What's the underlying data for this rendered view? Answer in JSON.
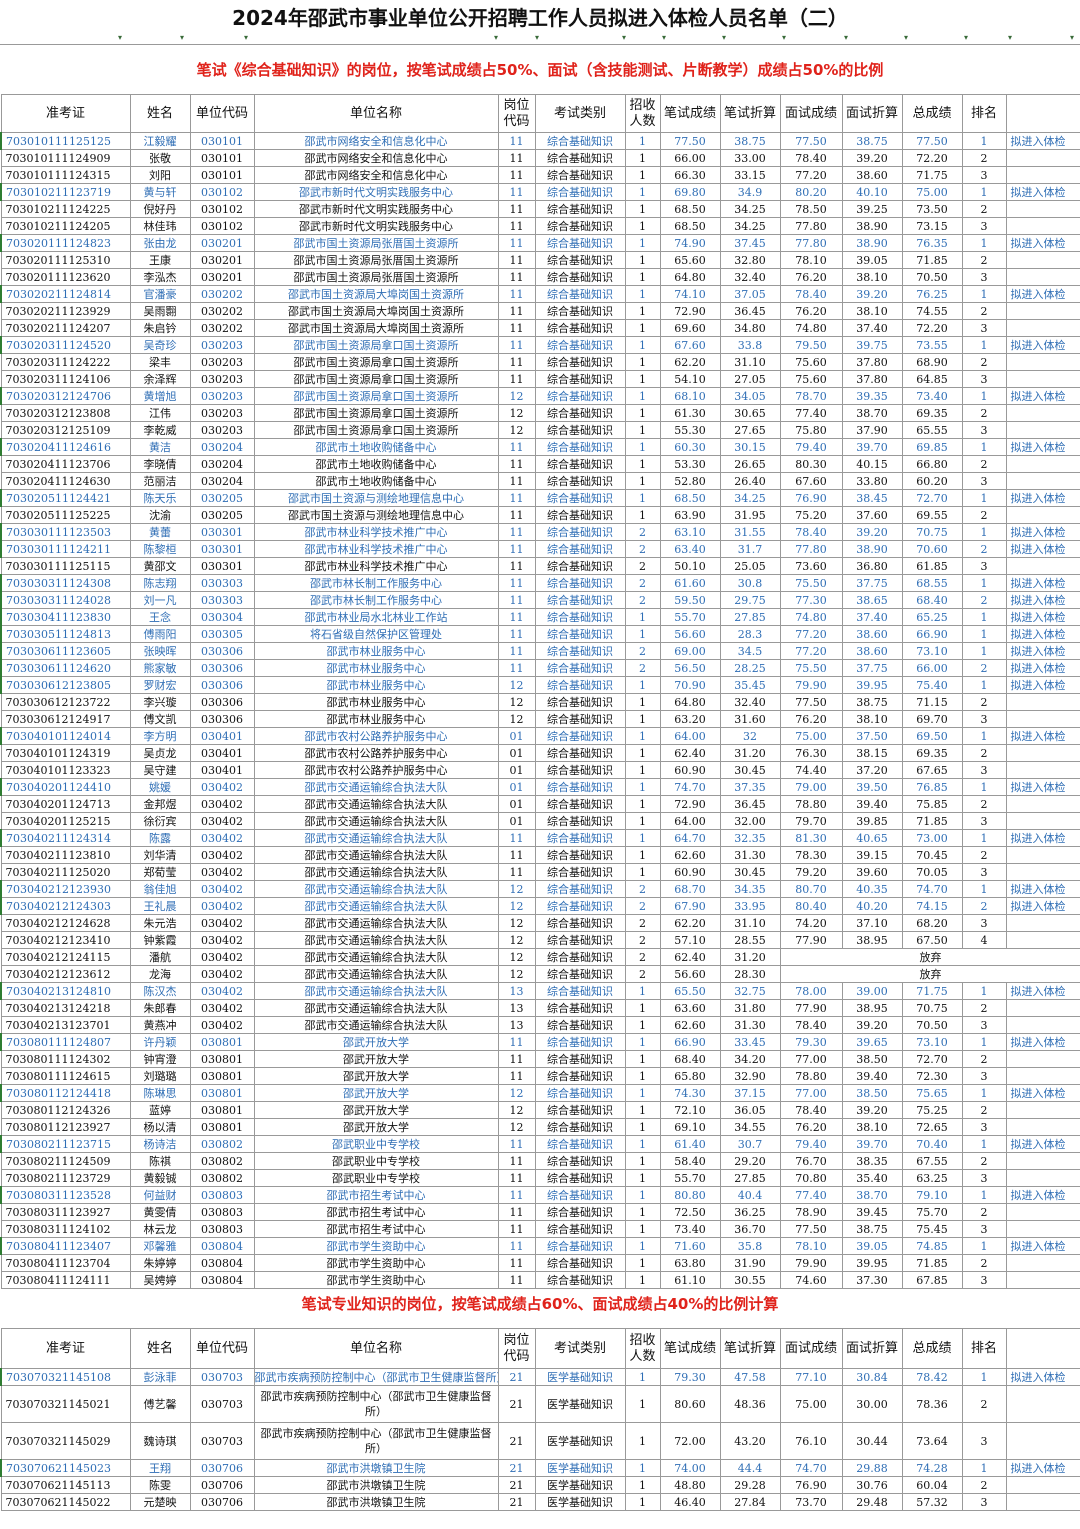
{
  "title": "2024年邵武市事业单位公开招聘工作人员拟进入体检人员名单（二）",
  "banner1": "笔试《综合基础知识》的岗位，按笔试成绩占50%、面试（含技能测试、片断教学）成绩占50%的比例",
  "banner2": "笔试专业知识的岗位，按笔试成绩占60%、面试成绩占40%的比例计算",
  "filter_icon": "▾",
  "headers": [
    "准考证",
    "姓名",
    "单位代码",
    "单位名称",
    "岗位代码",
    "考试类别",
    "招收人数",
    "笔试成绩",
    "笔试折算",
    "面试成绩",
    "面试折算",
    "总成绩",
    "排名"
  ],
  "rows1": [
    [
      "703010111125125",
      "江毅耀",
      "030101",
      "邵武市网络安全和信息化中心",
      "11",
      "综合基础知识",
      "1",
      "77.50",
      "38.75",
      "77.50",
      "38.75",
      "77.50",
      "1",
      "拟进入体检"
    ],
    [
      "703010111124909",
      "张敬",
      "030101",
      "邵武市网络安全和信息化中心",
      "11",
      "综合基础知识",
      "1",
      "66.00",
      "33.00",
      "78.40",
      "39.20",
      "72.20",
      "2",
      ""
    ],
    [
      "703010111124315",
      "刘阳",
      "030101",
      "邵武市网络安全和信息化中心",
      "11",
      "综合基础知识",
      "1",
      "66.30",
      "33.15",
      "77.20",
      "38.60",
      "71.75",
      "3",
      ""
    ],
    [
      "703010211123719",
      "黄与轩",
      "030102",
      "邵武市新时代文明实践服务中心",
      "11",
      "综合基础知识",
      "1",
      "69.80",
      "34.9",
      "80.20",
      "40.10",
      "75.00",
      "1",
      "拟进入体检"
    ],
    [
      "703010211124225",
      "倪好丹",
      "030102",
      "邵武市新时代文明实践服务中心",
      "11",
      "综合基础知识",
      "1",
      "68.50",
      "34.25",
      "78.50",
      "39.25",
      "73.50",
      "2",
      ""
    ],
    [
      "703010211124205",
      "林佳玮",
      "030102",
      "邵武市新时代文明实践服务中心",
      "11",
      "综合基础知识",
      "1",
      "68.50",
      "34.25",
      "77.80",
      "38.90",
      "73.15",
      "3",
      ""
    ],
    [
      "703020111124823",
      "张由龙",
      "030201",
      "邵武市国土资源局张厝国土资源所",
      "11",
      "综合基础知识",
      "1",
      "74.90",
      "37.45",
      "77.80",
      "38.90",
      "76.35",
      "1",
      "拟进入体检"
    ],
    [
      "703020111125310",
      "王康",
      "030201",
      "邵武市国土资源局张厝国土资源所",
      "11",
      "综合基础知识",
      "1",
      "65.60",
      "32.80",
      "78.10",
      "39.05",
      "71.85",
      "2",
      ""
    ],
    [
      "703020111123620",
      "李泓杰",
      "030201",
      "邵武市国土资源局张厝国土资源所",
      "11",
      "综合基础知识",
      "1",
      "64.80",
      "32.40",
      "76.20",
      "38.10",
      "70.50",
      "3",
      ""
    ],
    [
      "703020211124814",
      "官潘豪",
      "030202",
      "邵武市国土资源局大埠岗国土资源所",
      "11",
      "综合基础知识",
      "1",
      "74.10",
      "37.05",
      "78.40",
      "39.20",
      "76.25",
      "1",
      "拟进入体检"
    ],
    [
      "703020211123929",
      "吴雨翾",
      "030202",
      "邵武市国土资源局大埠岗国土资源所",
      "11",
      "综合基础知识",
      "1",
      "72.90",
      "36.45",
      "76.20",
      "38.10",
      "74.55",
      "2",
      ""
    ],
    [
      "703020211124207",
      "朱启钤",
      "030202",
      "邵武市国土资源局大埠岗国土资源所",
      "11",
      "综合基础知识",
      "1",
      "69.60",
      "34.80",
      "74.80",
      "37.40",
      "72.20",
      "3",
      ""
    ],
    [
      "703020311124520",
      "吴奇珍",
      "030203",
      "邵武市国土资源局拿口国土资源所",
      "11",
      "综合基础知识",
      "1",
      "67.60",
      "33.8",
      "79.50",
      "39.75",
      "73.55",
      "1",
      "拟进入体检"
    ],
    [
      "703020311124222",
      "梁丰",
      "030203",
      "邵武市国土资源局拿口国土资源所",
      "11",
      "综合基础知识",
      "1",
      "62.20",
      "31.10",
      "75.60",
      "37.80",
      "68.90",
      "2",
      ""
    ],
    [
      "703020311124106",
      "余泽辉",
      "030203",
      "邵武市国土资源局拿口国土资源所",
      "11",
      "综合基础知识",
      "1",
      "54.10",
      "27.05",
      "75.60",
      "37.80",
      "64.85",
      "3",
      ""
    ],
    [
      "703020312124706",
      "黄增旭",
      "030203",
      "邵武市国土资源局拿口国土资源所",
      "12",
      "综合基础知识",
      "1",
      "68.10",
      "34.05",
      "78.70",
      "39.35",
      "73.40",
      "1",
      "拟进入体检"
    ],
    [
      "703020312123808",
      "江伟",
      "030203",
      "邵武市国土资源局拿口国土资源所",
      "12",
      "综合基础知识",
      "1",
      "61.30",
      "30.65",
      "77.40",
      "38.70",
      "69.35",
      "2",
      ""
    ],
    [
      "703020312125109",
      "李乾威",
      "030203",
      "邵武市国土资源局拿口国土资源所",
      "12",
      "综合基础知识",
      "1",
      "55.30",
      "27.65",
      "75.80",
      "37.90",
      "65.55",
      "3",
      ""
    ],
    [
      "703020411124616",
      "黄洁",
      "030204",
      "邵武市土地收购储备中心",
      "11",
      "综合基础知识",
      "1",
      "60.30",
      "30.15",
      "79.40",
      "39.70",
      "69.85",
      "1",
      "拟进入体检"
    ],
    [
      "703020411123706",
      "李晓倩",
      "030204",
      "邵武市土地收购储备中心",
      "11",
      "综合基础知识",
      "1",
      "53.30",
      "26.65",
      "80.30",
      "40.15",
      "66.80",
      "2",
      ""
    ],
    [
      "703020411124630",
      "范丽洁",
      "030204",
      "邵武市土地收购储备中心",
      "11",
      "综合基础知识",
      "1",
      "52.80",
      "26.40",
      "67.60",
      "33.80",
      "60.20",
      "3",
      ""
    ],
    [
      "703020511124421",
      "陈天乐",
      "030205",
      "邵武市国土资源与测绘地理信息中心",
      "11",
      "综合基础知识",
      "1",
      "68.50",
      "34.25",
      "76.90",
      "38.45",
      "72.70",
      "1",
      "拟进入体检"
    ],
    [
      "703020511125225",
      "沈渝",
      "030205",
      "邵武市国土资源与测绘地理信息中心",
      "11",
      "综合基础知识",
      "1",
      "63.90",
      "31.95",
      "75.20",
      "37.60",
      "69.55",
      "2",
      ""
    ],
    [
      "703030111123503",
      "黄蕾",
      "030301",
      "邵武市林业科学技术推广中心",
      "11",
      "综合基础知识",
      "2",
      "63.10",
      "31.55",
      "78.40",
      "39.20",
      "70.75",
      "1",
      "拟进入体检"
    ],
    [
      "703030111124211",
      "陈黎桓",
      "030301",
      "邵武市林业科学技术推广中心",
      "11",
      "综合基础知识",
      "2",
      "63.40",
      "31.7",
      "77.80",
      "38.90",
      "70.60",
      "2",
      "拟进入体检"
    ],
    [
      "703030111125115",
      "黄邵文",
      "030301",
      "邵武市林业科学技术推广中心",
      "11",
      "综合基础知识",
      "2",
      "50.10",
      "25.05",
      "73.60",
      "36.80",
      "61.85",
      "3",
      ""
    ],
    [
      "703030311124308",
      "陈志翔",
      "030303",
      "邵武市林长制工作服务中心",
      "11",
      "综合基础知识",
      "2",
      "61.60",
      "30.8",
      "75.50",
      "37.75",
      "68.55",
      "1",
      "拟进入体检"
    ],
    [
      "703030311124028",
      "刘一凡",
      "030303",
      "邵武市林长制工作服务中心",
      "11",
      "综合基础知识",
      "2",
      "59.50",
      "29.75",
      "77.30",
      "38.65",
      "68.40",
      "2",
      "拟进入体检"
    ],
    [
      "703030411123830",
      "王念",
      "030304",
      "邵武市林业局水北林业工作站",
      "11",
      "综合基础知识",
      "1",
      "55.70",
      "27.85",
      "74.80",
      "37.40",
      "65.25",
      "1",
      "拟进入体检"
    ],
    [
      "703030511124813",
      "傅雨阳",
      "030305",
      "将石省级自然保护区管理处",
      "11",
      "综合基础知识",
      "1",
      "56.60",
      "28.3",
      "77.20",
      "38.60",
      "66.90",
      "1",
      "拟进入体检"
    ],
    [
      "703030611123605",
      "张映晖",
      "030306",
      "邵武市林业服务中心",
      "11",
      "综合基础知识",
      "2",
      "69.00",
      "34.5",
      "77.20",
      "38.60",
      "73.10",
      "1",
      "拟进入体检"
    ],
    [
      "703030611124620",
      "熊家敏",
      "030306",
      "邵武市林业服务中心",
      "11",
      "综合基础知识",
      "2",
      "56.50",
      "28.25",
      "75.50",
      "37.75",
      "66.00",
      "2",
      "拟进入体检"
    ],
    [
      "703030612123805",
      "罗财宏",
      "030306",
      "邵武市林业服务中心",
      "12",
      "综合基础知识",
      "1",
      "70.90",
      "35.45",
      "79.90",
      "39.95",
      "75.40",
      "1",
      "拟进入体检"
    ],
    [
      "703030612123722",
      "李兴璇",
      "030306",
      "邵武市林业服务中心",
      "12",
      "综合基础知识",
      "1",
      "64.80",
      "32.40",
      "77.50",
      "38.75",
      "71.15",
      "2",
      ""
    ],
    [
      "703030612124917",
      "傅文凯",
      "030306",
      "邵武市林业服务中心",
      "12",
      "综合基础知识",
      "1",
      "63.20",
      "31.60",
      "76.20",
      "38.10",
      "69.70",
      "3",
      ""
    ],
    [
      "703040101124014",
      "李方明",
      "030401",
      "邵武市农村公路养护服务中心",
      "01",
      "综合基础知识",
      "1",
      "64.00",
      "32",
      "75.00",
      "37.50",
      "69.50",
      "1",
      "拟进入体检"
    ],
    [
      "703040101124319",
      "吴贞龙",
      "030401",
      "邵武市农村公路养护服务中心",
      "01",
      "综合基础知识",
      "1",
      "62.40",
      "31.20",
      "76.30",
      "38.15",
      "69.35",
      "2",
      ""
    ],
    [
      "703040101123323",
      "吴守建",
      "030401",
      "邵武市农村公路养护服务中心",
      "01",
      "综合基础知识",
      "1",
      "60.90",
      "30.45",
      "74.40",
      "37.20",
      "67.65",
      "3",
      ""
    ],
    [
      "703040201124410",
      "姚媛",
      "030402",
      "邵武市交通运输综合执法大队",
      "01",
      "综合基础知识",
      "1",
      "74.70",
      "37.35",
      "79.00",
      "39.50",
      "76.85",
      "1",
      "拟进入体检"
    ],
    [
      "703040201124713",
      "金邦煜",
      "030402",
      "邵武市交通运输综合执法大队",
      "01",
      "综合基础知识",
      "1",
      "72.90",
      "36.45",
      "78.80",
      "39.40",
      "75.85",
      "2",
      ""
    ],
    [
      "703040201125215",
      "徐衍宾",
      "030402",
      "邵武市交通运输综合执法大队",
      "01",
      "综合基础知识",
      "1",
      "64.00",
      "32.00",
      "79.70",
      "39.85",
      "71.85",
      "3",
      ""
    ],
    [
      "703040211124314",
      "陈露",
      "030402",
      "邵武市交通运输综合执法大队",
      "11",
      "综合基础知识",
      "1",
      "64.70",
      "32.35",
      "81.30",
      "40.65",
      "73.00",
      "1",
      "拟进入体检"
    ],
    [
      "703040211123810",
      "刘华清",
      "030402",
      "邵武市交通运输综合执法大队",
      "11",
      "综合基础知识",
      "1",
      "62.60",
      "31.30",
      "78.30",
      "39.15",
      "70.45",
      "2",
      ""
    ],
    [
      "703040211125020",
      "郑荀莹",
      "030402",
      "邵武市交通运输综合执法大队",
      "11",
      "综合基础知识",
      "1",
      "60.90",
      "30.45",
      "79.20",
      "39.60",
      "70.05",
      "3",
      ""
    ],
    [
      "703040212123930",
      "翁佳旭",
      "030402",
      "邵武市交通运输综合执法大队",
      "12",
      "综合基础知识",
      "2",
      "68.70",
      "34.35",
      "80.70",
      "40.35",
      "74.70",
      "1",
      "拟进入体检"
    ],
    [
      "703040212124303",
      "王礼晨",
      "030402",
      "邵武市交通运输综合执法大队",
      "12",
      "综合基础知识",
      "2",
      "67.90",
      "33.95",
      "80.40",
      "40.20",
      "74.15",
      "2",
      "拟进入体检"
    ],
    [
      "703040212124628",
      "朱元浩",
      "030402",
      "邵武市交通运输综合执法大队",
      "12",
      "综合基础知识",
      "2",
      "62.20",
      "31.10",
      "74.20",
      "37.10",
      "68.20",
      "3",
      ""
    ],
    [
      "703040212123410",
      "钟紫霞",
      "030402",
      "邵武市交通运输综合执法大队",
      "12",
      "综合基础知识",
      "2",
      "57.10",
      "28.55",
      "77.90",
      "38.95",
      "67.50",
      "4",
      ""
    ],
    [
      "703040212124115",
      "潘航",
      "030402",
      "邵武市交通运输综合执法大队",
      "12",
      "综合基础知识",
      "2",
      "62.40",
      "31.20",
      "放弃",
      "",
      "",
      "",
      ""
    ],
    [
      "703040212123612",
      "龙海",
      "030402",
      "邵武市交通运输综合执法大队",
      "12",
      "综合基础知识",
      "2",
      "56.60",
      "28.30",
      "放弃",
      "",
      "",
      "",
      ""
    ],
    [
      "703040213124810",
      "陈汉杰",
      "030402",
      "邵武市交通运输综合执法大队",
      "13",
      "综合基础知识",
      "1",
      "65.50",
      "32.75",
      "78.00",
      "39.00",
      "71.75",
      "1",
      "拟进入体检"
    ],
    [
      "703040213124218",
      "朱郎春",
      "030402",
      "邵武市交通运输综合执法大队",
      "13",
      "综合基础知识",
      "1",
      "63.60",
      "31.80",
      "77.90",
      "38.95",
      "70.75",
      "2",
      ""
    ],
    [
      "703040213123701",
      "黄燕冲",
      "030402",
      "邵武市交通运输综合执法大队",
      "13",
      "综合基础知识",
      "1",
      "62.60",
      "31.30",
      "78.40",
      "39.20",
      "70.50",
      "3",
      ""
    ],
    [
      "703080111124807",
      "许丹颖",
      "030801",
      "邵武开放大学",
      "11",
      "综合基础知识",
      "1",
      "66.90",
      "33.45",
      "79.30",
      "39.65",
      "73.10",
      "1",
      "拟进入体检"
    ],
    [
      "703080111124302",
      "钟宵澄",
      "030801",
      "邵武开放大学",
      "11",
      "综合基础知识",
      "1",
      "68.40",
      "34.20",
      "77.00",
      "38.50",
      "72.70",
      "2",
      ""
    ],
    [
      "703080111124615",
      "刘璐璐",
      "030801",
      "邵武开放大学",
      "11",
      "综合基础知识",
      "1",
      "65.80",
      "32.90",
      "78.80",
      "39.40",
      "72.30",
      "3",
      ""
    ],
    [
      "703080112124418",
      "陈琳思",
      "030801",
      "邵武开放大学",
      "12",
      "综合基础知识",
      "1",
      "74.30",
      "37.15",
      "77.00",
      "38.50",
      "75.65",
      "1",
      "拟进入体检"
    ],
    [
      "703080112124326",
      "蓝婷",
      "030801",
      "邵武开放大学",
      "12",
      "综合基础知识",
      "1",
      "72.10",
      "36.05",
      "78.40",
      "39.20",
      "75.25",
      "2",
      ""
    ],
    [
      "703080112123927",
      "杨以清",
      "030801",
      "邵武开放大学",
      "12",
      "综合基础知识",
      "1",
      "69.10",
      "34.55",
      "76.20",
      "38.10",
      "72.65",
      "3",
      ""
    ],
    [
      "703080211123715",
      "杨诗洁",
      "030802",
      "邵武职业中专学校",
      "11",
      "综合基础知识",
      "1",
      "61.40",
      "30.7",
      "79.40",
      "39.70",
      "70.40",
      "1",
      "拟进入体检"
    ],
    [
      "703080211124509",
      "陈祺",
      "030802",
      "邵武职业中专学校",
      "11",
      "综合基础知识",
      "1",
      "58.40",
      "29.20",
      "76.70",
      "38.35",
      "67.55",
      "2",
      ""
    ],
    [
      "703080211123729",
      "黄毅铖",
      "030802",
      "邵武职业中专学校",
      "11",
      "综合基础知识",
      "1",
      "55.70",
      "27.85",
      "70.80",
      "35.40",
      "63.25",
      "3",
      ""
    ],
    [
      "703080311123528",
      "何益财",
      "030803",
      "邵武市招生考试中心",
      "11",
      "综合基础知识",
      "1",
      "80.80",
      "40.4",
      "77.40",
      "38.70",
      "79.10",
      "1",
      "拟进入体检"
    ],
    [
      "703080311123927",
      "黄雯倩",
      "030803",
      "邵武市招生考试中心",
      "11",
      "综合基础知识",
      "1",
      "72.50",
      "36.25",
      "78.90",
      "39.45",
      "75.70",
      "2",
      ""
    ],
    [
      "703080311124102",
      "林云龙",
      "030803",
      "邵武市招生考试中心",
      "11",
      "综合基础知识",
      "1",
      "73.40",
      "36.70",
      "77.50",
      "38.75",
      "75.45",
      "3",
      ""
    ],
    [
      "703080411123407",
      "邓馨雅",
      "030804",
      "邵武市学生资助中心",
      "11",
      "综合基础知识",
      "1",
      "71.60",
      "35.8",
      "78.10",
      "39.05",
      "74.85",
      "1",
      "拟进入体检"
    ],
    [
      "703080411123704",
      "朱婷婷",
      "030804",
      "邵武市学生资助中心",
      "11",
      "综合基础知识",
      "1",
      "63.80",
      "31.90",
      "79.90",
      "39.95",
      "71.85",
      "2",
      ""
    ],
    [
      "703080411124111",
      "吴娉婷",
      "030804",
      "邵武市学生资助中心",
      "11",
      "综合基础知识",
      "1",
      "61.10",
      "30.55",
      "74.60",
      "37.30",
      "67.85",
      "3",
      ""
    ]
  ],
  "rows2": [
    [
      "703070321145108",
      "彭泳菲",
      "030703",
      "邵武市疾病预防控制中心（邵武市卫生健康监督所）",
      "21",
      "医学基础知识",
      "1",
      "79.30",
      "47.58",
      "77.10",
      "30.84",
      "78.42",
      "1",
      "拟进入体检"
    ],
    [
      "703070321145021",
      "傅艺馨",
      "030703",
      "邵武市疾病预防控制中心（邵武市卫生健康监督所）",
      "21",
      "医学基础知识",
      "1",
      "80.60",
      "48.36",
      "75.00",
      "30.00",
      "78.36",
      "2",
      ""
    ],
    [
      "703070321145029",
      "魏诗琪",
      "030703",
      "邵武市疾病预防控制中心（邵武市卫生健康监督所）",
      "21",
      "医学基础知识",
      "1",
      "72.00",
      "43.20",
      "76.10",
      "30.44",
      "73.64",
      "3",
      ""
    ],
    [
      "703070621145023",
      "王翔",
      "030706",
      "邵武市洪墩镇卫生院",
      "21",
      "医学基础知识",
      "1",
      "74.00",
      "44.4",
      "74.70",
      "29.88",
      "74.28",
      "1",
      "拟进入体检"
    ],
    [
      "703070621145113",
      "陈雯",
      "030706",
      "邵武市洪墩镇卫生院",
      "21",
      "医学基础知识",
      "1",
      "48.80",
      "29.28",
      "76.90",
      "30.76",
      "60.04",
      "2",
      ""
    ],
    [
      "703070621145022",
      "元楚映",
      "030706",
      "邵武市洪墩镇卫生院",
      "21",
      "医学基础知识",
      "1",
      "46.40",
      "27.84",
      "73.70",
      "29.48",
      "57.32",
      "3",
      ""
    ]
  ]
}
